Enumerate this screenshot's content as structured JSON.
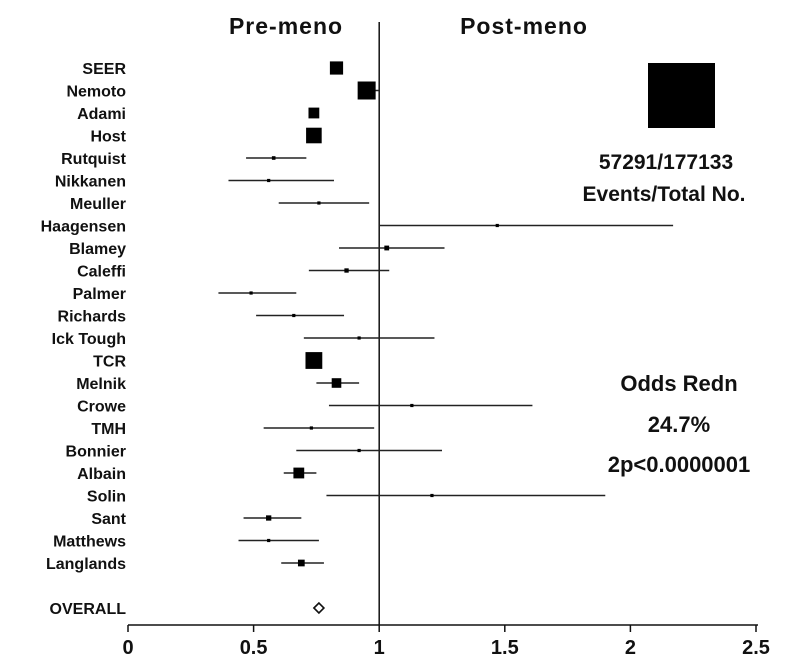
{
  "chart_data": {
    "type": "forest",
    "header_left": "Pre-meno",
    "header_right": "Post-meno",
    "xlim": [
      0,
      2.5
    ],
    "xticks": [
      "0",
      "0.5",
      "1",
      "1.5",
      "2",
      "2.5"
    ],
    "reference_line": 1,
    "studies": [
      {
        "name": "SEER",
        "or": 0.83,
        "low": null,
        "high": null,
        "weight": 0.55
      },
      {
        "name": "Nemoto",
        "or": 0.95,
        "low": 0.92,
        "high": 1.0,
        "weight": 0.75
      },
      {
        "name": "Adami",
        "or": 0.74,
        "low": null,
        "high": null,
        "weight": 0.45
      },
      {
        "name": "Host",
        "or": 0.74,
        "low": null,
        "high": null,
        "weight": 0.65
      },
      {
        "name": "Rutquist",
        "or": 0.58,
        "low": 0.47,
        "high": 0.71,
        "weight": 0.15
      },
      {
        "name": "Nikkanen",
        "or": 0.56,
        "low": 0.4,
        "high": 0.82,
        "weight": 0.07
      },
      {
        "name": "Meuller",
        "or": 0.76,
        "low": 0.6,
        "high": 0.96,
        "weight": 0.13
      },
      {
        "name": "Haagensen",
        "or": 1.47,
        "low": 1.0,
        "high": 2.17,
        "weight": 0.05
      },
      {
        "name": "Blamey",
        "or": 1.03,
        "low": 0.84,
        "high": 1.26,
        "weight": 0.2
      },
      {
        "name": "Caleffi",
        "or": 0.87,
        "low": 0.72,
        "high": 1.04,
        "weight": 0.18
      },
      {
        "name": "Palmer",
        "or": 0.49,
        "low": 0.36,
        "high": 0.67,
        "weight": 0.09
      },
      {
        "name": "Richards",
        "or": 0.66,
        "low": 0.51,
        "high": 0.86,
        "weight": 0.12
      },
      {
        "name": "Ick Tough",
        "or": 0.92,
        "low": 0.7,
        "high": 1.22,
        "weight": 0.1
      },
      {
        "name": "TCR",
        "or": 0.74,
        "low": null,
        "high": null,
        "weight": 0.7
      },
      {
        "name": "Melnik",
        "or": 0.83,
        "low": 0.75,
        "high": 0.92,
        "weight": 0.4
      },
      {
        "name": "Crowe",
        "or": 1.13,
        "low": 0.8,
        "high": 1.61,
        "weight": 0.06
      },
      {
        "name": "TMH",
        "or": 0.73,
        "low": 0.54,
        "high": 0.98,
        "weight": 0.1
      },
      {
        "name": "Bonnier",
        "or": 0.92,
        "low": 0.67,
        "high": 1.25,
        "weight": 0.1
      },
      {
        "name": "Albain",
        "or": 0.68,
        "low": 0.62,
        "high": 0.75,
        "weight": 0.45
      },
      {
        "name": "Solin",
        "or": 1.21,
        "low": 0.79,
        "high": 1.9,
        "weight": 0.05
      },
      {
        "name": "Sant",
        "or": 0.56,
        "low": 0.46,
        "high": 0.69,
        "weight": 0.22
      },
      {
        "name": "Matthews",
        "or": 0.56,
        "low": 0.44,
        "high": 0.76,
        "weight": 0.13
      },
      {
        "name": "Langlands",
        "or": 0.69,
        "low": 0.61,
        "high": 0.78,
        "weight": 0.28
      }
    ],
    "overall": {
      "name": "OVERALL",
      "or": 0.76
    },
    "weight_key": {
      "label_1": "57291/177133",
      "label_2": "Events/Total No."
    },
    "stats": {
      "line_1": "Odds Redn",
      "line_2": "24.7%",
      "line_3": "2p<0.0000001"
    },
    "grid": false,
    "legend": "none"
  }
}
